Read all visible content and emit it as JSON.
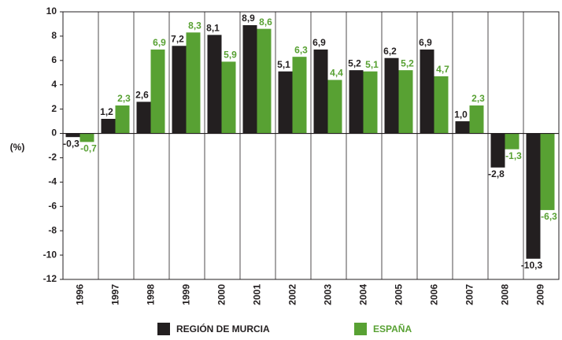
{
  "chart_data": {
    "type": "bar",
    "y_label": "(%)",
    "categories": [
      "1996",
      "1997",
      "1998",
      "1999",
      "2000",
      "2001",
      "2002",
      "2003",
      "2004",
      "2005",
      "2006",
      "2007",
      "2008",
      "2009"
    ],
    "series": [
      {
        "name": "REGIÓN DE MURCIA",
        "color": "#231f20",
        "values": [
          -0.3,
          1.2,
          2.6,
          7.2,
          8.1,
          8.9,
          5.1,
          6.9,
          5.2,
          6.2,
          6.9,
          1.0,
          -2.8,
          -10.3
        ],
        "value_labels": [
          "-0,3",
          "1,2",
          "2,6",
          "7,2",
          "8,1",
          "8,9",
          "5,1",
          "6,9",
          "5,2",
          "6,2",
          "6,9",
          "1,0",
          "-2,8",
          "-10,3"
        ]
      },
      {
        "name": "ESPAÑA",
        "color": "#58a133",
        "values": [
          -0.7,
          2.3,
          6.9,
          8.3,
          5.9,
          8.6,
          6.3,
          4.4,
          5.1,
          5.2,
          4.7,
          2.3,
          -1.3,
          -6.3
        ],
        "value_labels": [
          "-0,7",
          "2,3",
          "6,9",
          "8,3",
          "5,9",
          "8,6",
          "6,3",
          "4,4",
          "5,1",
          "5,2",
          "4,7",
          "2,3",
          "-1,3",
          "-6,3"
        ]
      }
    ],
    "ylim": [
      -12,
      10
    ],
    "yticks": [
      -12,
      -10,
      -8,
      -6,
      -4,
      -2,
      0,
      2,
      4,
      6,
      8,
      10
    ],
    "grid": false,
    "category_dividers": true,
    "legend": "bottom"
  }
}
